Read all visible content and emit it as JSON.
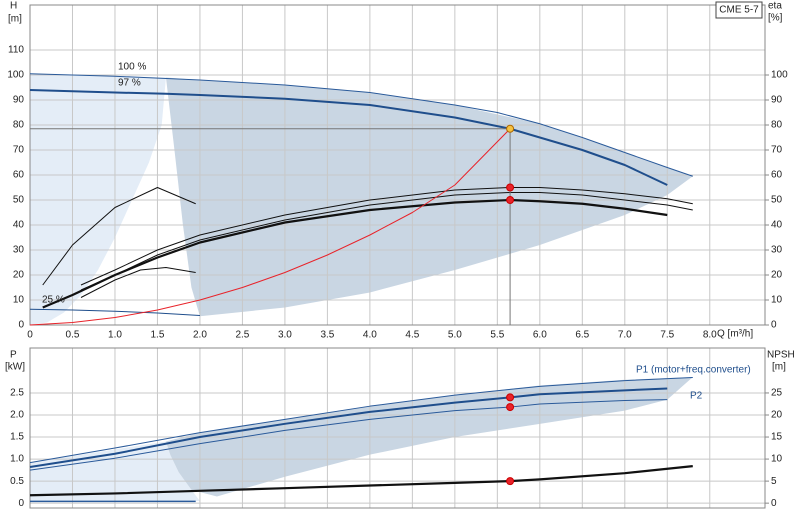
{
  "chart_data": [
    {
      "type": "line",
      "title": "CME 5-7",
      "ylabel": "H",
      "yunit": "[m]",
      "y2label": "eta",
      "y2unit": "[%]",
      "xlabel": "Q [m³/h]",
      "annotations": [
        "100 %",
        "97 %",
        "25 %"
      ],
      "xlim": [
        0,
        8.65
      ],
      "ylim": [
        0,
        128
      ],
      "y2lim": [
        0,
        128
      ],
      "grid": true,
      "crosshair": true,
      "xtick_labels": true,
      "xticks": [
        0,
        0.5,
        {
          "value": 1,
          "label": "1.0"
        },
        1.5,
        {
          "value": 2,
          "label": "2.0"
        },
        2.5,
        {
          "value": 3,
          "label": "3.0"
        },
        3.5,
        {
          "value": 4,
          "label": "4.0"
        },
        4.5,
        {
          "value": 5,
          "label": "5.0"
        },
        5.5,
        {
          "value": 6,
          "label": "6.0"
        },
        6.5,
        {
          "value": 7,
          "label": "7.0"
        },
        7.5,
        {
          "value": 8,
          "label": "8.0"
        }
      ],
      "yticks": [
        0,
        10,
        20,
        30,
        40,
        50,
        60,
        70,
        80,
        90,
        100,
        110
      ],
      "y2ticks": [
        0,
        10,
        20,
        30,
        40,
        50,
        60,
        70,
        80,
        90,
        100
      ],
      "areas": [
        {
          "color": "#e4edf7",
          "x": [
            0,
            1.6,
            1.55,
            1.4,
            1.2,
            1,
            0.8,
            0.6,
            0.4,
            0.2,
            0
          ],
          "values": [
            100.5,
            99,
            80,
            65,
            50,
            35,
            22,
            12,
            5,
            1,
            0
          ]
        },
        {
          "color": "#c9d6e3",
          "x": [
            1.6,
            2,
            3,
            4,
            5,
            6,
            7,
            7.8,
            7.5,
            7,
            6,
            5,
            4,
            3,
            2,
            1.9,
            1.8,
            1.7
          ],
          "values": [
            99,
            98,
            96,
            93,
            88,
            80.5,
            69,
            59.5,
            52,
            44,
            32,
            22,
            13,
            7,
            3.5,
            15,
            40,
            70
          ]
        }
      ],
      "series": [
        {
          "color": "#2a5a9a",
          "width": 1,
          "x": [
            0,
            1,
            2,
            3,
            4,
            5,
            5.5,
            6,
            6.5,
            7,
            7.5,
            7.8
          ],
          "values": [
            100.5,
            99.5,
            98,
            96,
            93,
            88,
            85,
            80.5,
            75,
            69,
            63,
            59.5
          ]
        },
        {
          "color": "#1f4e8c",
          "width": 2,
          "x": [
            0,
            1,
            1.6,
            2,
            3,
            4,
            5,
            5.65,
            6,
            6.5,
            7,
            7.5
          ],
          "values": [
            94,
            93,
            92.5,
            92,
            90.5,
            88,
            83,
            78.5,
            75,
            70,
            64,
            56
          ]
        },
        {
          "color": "#1f4e8c",
          "width": 1,
          "x": [
            0,
            0.5,
            1,
            1.5,
            2
          ],
          "values": [
            6.3,
            6,
            5.5,
            4.8,
            3.8
          ]
        },
        {
          "color": "#111111",
          "width": 1,
          "axis": "y2",
          "x": [
            0.15,
            0.5,
            1,
            1.5,
            1.95
          ],
          "values": [
            16,
            32,
            47,
            55,
            48.5
          ]
        },
        {
          "color": "#111111",
          "width": 1,
          "axis": "y2",
          "x": [
            0.6,
            1,
            1.3,
            1.6,
            1.95
          ],
          "values": [
            11,
            18,
            22,
            23,
            21
          ]
        },
        {
          "color": "#111111",
          "width": 1,
          "axis": "y2",
          "x": [
            0.6,
            1,
            1.5,
            2,
            3,
            4,
            5,
            5.65,
            6,
            6.5,
            7,
            7.5,
            7.8
          ],
          "values": [
            16,
            22,
            30,
            36,
            44,
            50,
            54,
            55,
            55,
            54,
            52.5,
            50.5,
            48.5
          ]
        },
        {
          "color": "#111111",
          "width": 1,
          "axis": "y2",
          "x": [
            0.6,
            1,
            1.5,
            2,
            3,
            4,
            5,
            5.65,
            6,
            6.5,
            7,
            7.5,
            7.8
          ],
          "values": [
            14,
            20,
            28,
            34,
            42,
            48,
            52,
            53,
            53,
            52,
            50,
            48,
            46
          ]
        },
        {
          "color": "#111111",
          "width": 2.2,
          "axis": "y2",
          "x": [
            0.15,
            0.5,
            1,
            1.5,
            2,
            3,
            4,
            5,
            5.65,
            6,
            6.5,
            7,
            7.5
          ],
          "values": [
            7,
            12,
            20,
            27,
            33,
            41,
            46,
            49,
            50,
            49.5,
            48.5,
            46.5,
            44
          ]
        },
        {
          "color": "#e8232a",
          "width": 1,
          "x": [
            0,
            0.5,
            1,
            1.5,
            2,
            2.5,
            3,
            3.5,
            4,
            4.5,
            5,
            5.65
          ],
          "values": [
            0,
            1,
            3,
            6,
            10,
            15,
            21,
            28,
            36,
            45,
            56,
            78.5
          ]
        }
      ],
      "markers": [
        {
          "color": "#f5c242",
          "x": 5.65,
          "y": 78.5
        },
        {
          "color": "#e8232a",
          "x": 5.65,
          "y": 55,
          "axis": "y2"
        },
        {
          "color": "#e8232a",
          "x": 5.65,
          "y": 50,
          "axis": "y2"
        }
      ]
    },
    {
      "type": "line",
      "ylabel": "P",
      "yunit": "[kW]",
      "y2label": "NPSH",
      "y2unit": "[m]",
      "annotations": [
        "P1 (motor+freq.converter)",
        "P2"
      ],
      "xlim": [
        0,
        8.65
      ],
      "ylim": [
        -0.11,
        3.52
      ],
      "y2lim": [
        -1.1,
        35.2
      ],
      "grid": true,
      "crosshair": false,
      "xtick_labels": false,
      "xticks": [
        0,
        0.5,
        1,
        1.5,
        2,
        2.5,
        3,
        3.5,
        4,
        4.5,
        5,
        5.5,
        6,
        6.5,
        7,
        7.5,
        8
      ],
      "yticks": [
        0,
        0.5,
        {
          "value": 1,
          "label": "1.0"
        },
        1.5,
        {
          "value": 2,
          "label": "2.0"
        },
        2.5
      ],
      "y2ticks": [
        0,
        5,
        10,
        15,
        20,
        25
      ],
      "areas": [
        {
          "color": "#e4edf7",
          "x": [
            0,
            1.6,
            1.65,
            1.75,
            1.9,
            2,
            0
          ],
          "values": [
            0.92,
            1.4,
            1.1,
            0.7,
            0.3,
            0.05,
            0.05
          ]
        },
        {
          "color": "#c9d6e3",
          "x": [
            1.6,
            2,
            3,
            4,
            5,
            6,
            7,
            7.8,
            7.5,
            7,
            6,
            5,
            4,
            3,
            2.2,
            1.9,
            1.75,
            1.65
          ],
          "values": [
            1.4,
            1.6,
            1.9,
            2.2,
            2.45,
            2.67,
            2.8,
            2.86,
            2.35,
            2.1,
            1.8,
            1.5,
            1.1,
            0.6,
            0.15,
            0.3,
            0.7,
            1.1
          ]
        }
      ],
      "series": [
        {
          "color": "#2a5a9a",
          "width": 1,
          "x": [
            0,
            1,
            2,
            3,
            4,
            5,
            5.65,
            6,
            7,
            7.8
          ],
          "values": [
            0.92,
            1.25,
            1.6,
            1.9,
            2.2,
            2.45,
            2.58,
            2.65,
            2.78,
            2.85
          ]
        },
        {
          "color": "#1f4e8c",
          "width": 2,
          "x": [
            0,
            1,
            2,
            3,
            4,
            5,
            5.65,
            6,
            7,
            7.5
          ],
          "values": [
            0.82,
            1.12,
            1.5,
            1.8,
            2.07,
            2.28,
            2.4,
            2.47,
            2.56,
            2.6
          ]
        },
        {
          "color": "#2a5a9a",
          "width": 1,
          "x": [
            0,
            1,
            2,
            3,
            4,
            5,
            5.65,
            6,
            7,
            7.5
          ],
          "values": [
            0.75,
            1.02,
            1.35,
            1.65,
            1.9,
            2.1,
            2.18,
            2.25,
            2.33,
            2.35
          ]
        },
        {
          "color": "#2a5a9a",
          "width": 1.5,
          "x": [
            0,
            1.95
          ],
          "values": [
            0.04,
            0.04
          ]
        },
        {
          "color": "#111111",
          "width": 2.2,
          "axis": "y2",
          "x": [
            0,
            1,
            2,
            3,
            4,
            5,
            5.65,
            6,
            7,
            7.8
          ],
          "values": [
            1.8,
            2.2,
            2.8,
            3.4,
            4,
            4.6,
            5,
            5.4,
            6.8,
            8.4
          ]
        }
      ],
      "markers": [
        {
          "color": "#e8232a",
          "x": 5.65,
          "y": 2.4
        },
        {
          "color": "#e8232a",
          "x": 5.65,
          "y": 2.18
        },
        {
          "color": "#e8232a",
          "x": 5.65,
          "y": 5,
          "axis": "y2"
        }
      ]
    }
  ]
}
